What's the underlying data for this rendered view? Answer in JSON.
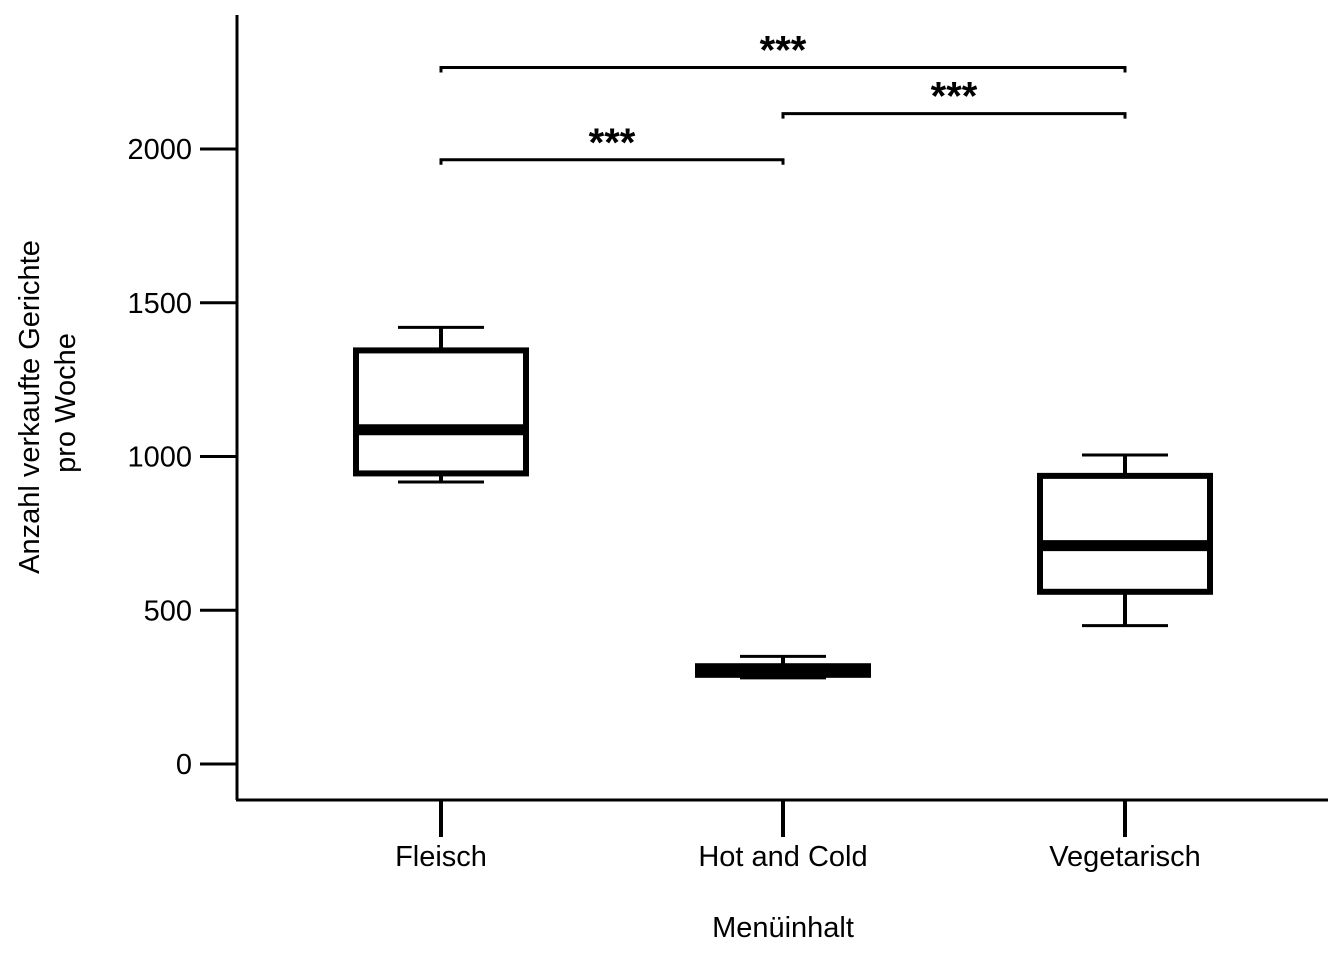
{
  "chart_data": {
    "type": "box",
    "xlabel": "Menüinhalt",
    "ylabel_lines": [
      "Anzahl verkaufte Gerichte",
      "pro Woche"
    ],
    "categories": [
      "Fleisch",
      "Hot and Cold",
      "Vegetarisch"
    ],
    "yticks": [
      0,
      500,
      1000,
      1500,
      2000
    ],
    "ytick_labels": [
      "0",
      "500",
      "1000",
      "1500",
      "2000"
    ],
    "ylim": [
      -115,
      2440
    ],
    "grid": false,
    "boxes": [
      {
        "category": "Fleisch",
        "whisker_low": 917,
        "q1": 945,
        "median": 1087,
        "q3": 1345,
        "whisker_high": 1420
      },
      {
        "category": "Hot and Cold",
        "whisker_low": 280,
        "q1": 290,
        "median": 302,
        "q3": 318,
        "whisker_high": 350
      },
      {
        "category": "Vegetarisch",
        "whisker_low": 450,
        "q1": 560,
        "median": 710,
        "q3": 937,
        "whisker_high": 1005
      }
    ],
    "significance": [
      {
        "from": 0,
        "to": 1,
        "y": 1965,
        "label": "***"
      },
      {
        "from": 1,
        "to": 2,
        "y": 2115,
        "label": "***"
      },
      {
        "from": 0,
        "to": 2,
        "y": 2265,
        "label": "***"
      }
    ]
  }
}
